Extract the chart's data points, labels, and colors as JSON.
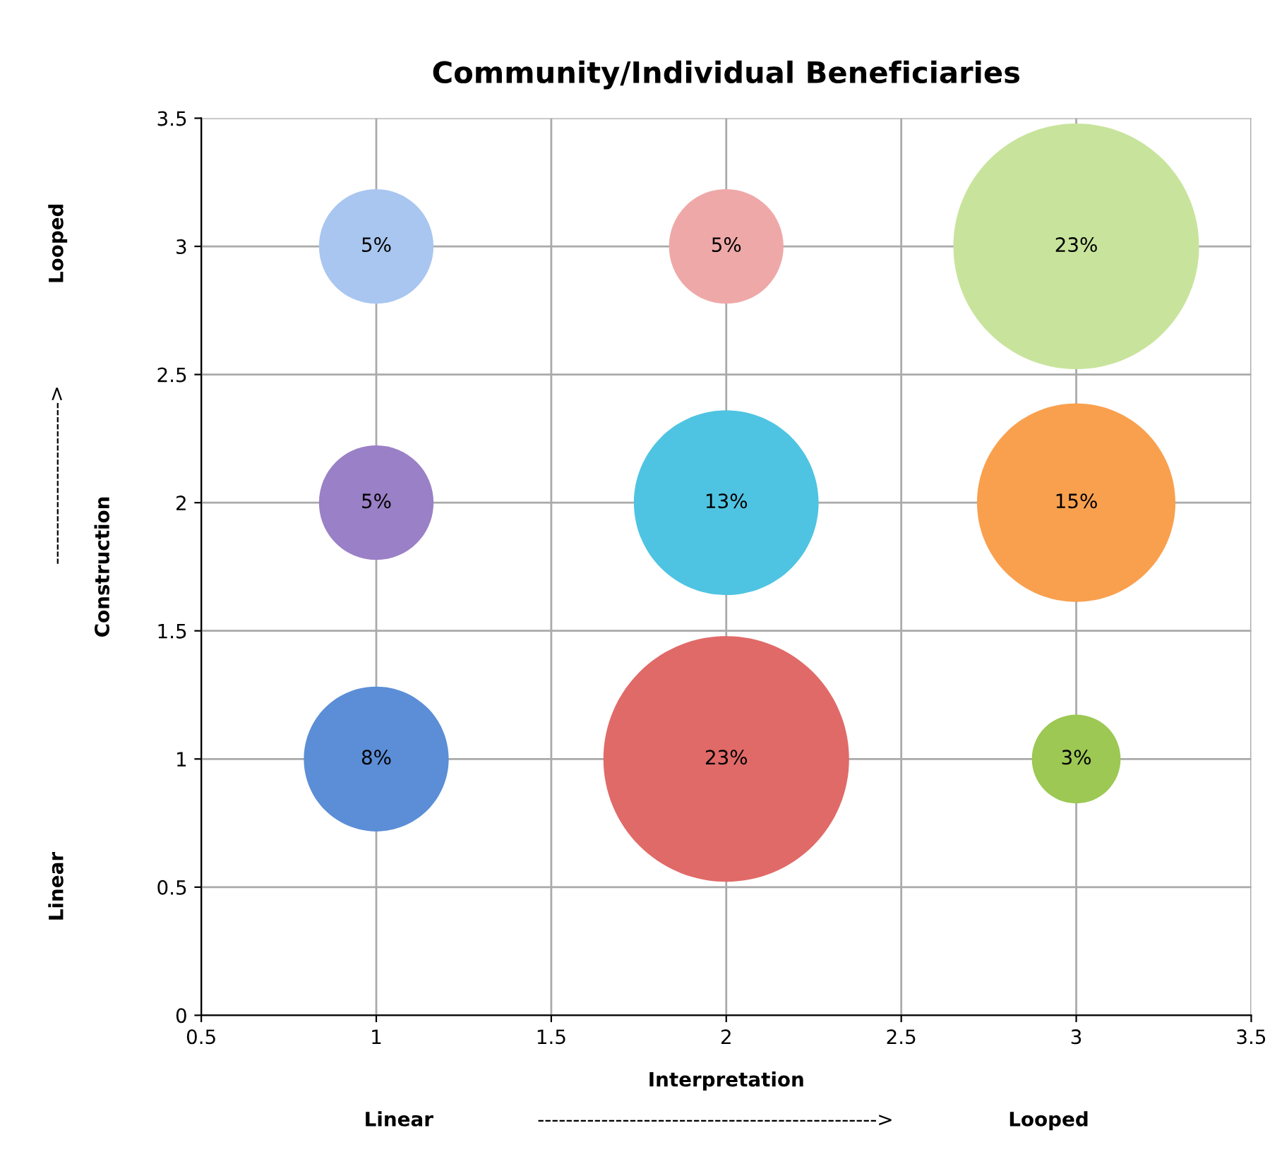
{
  "chart_data": {
    "type": "bubble",
    "title": "Community/Individual Beneficiaries",
    "xlabel": "Interpretation",
    "ylabel": "Construction",
    "x": [
      1,
      2,
      3,
      1,
      2,
      3,
      1,
      2,
      3
    ],
    "values": [
      1,
      1,
      1,
      2,
      2,
      2,
      3,
      3,
      3
    ],
    "sizes": [
      8,
      23,
      3,
      5,
      13,
      15,
      5,
      5,
      23
    ],
    "value_labels": [
      "8%",
      "23%",
      "3%",
      "5%",
      "13%",
      "15%",
      "5%",
      "5%",
      "23%"
    ],
    "colors": [
      "#5b8ed6",
      "#e06a68",
      "#9cc853",
      "#9a80c6",
      "#4ec4e2",
      "#f9a04e",
      "#a9c6f0",
      "#efa8a8",
      "#c8e49c"
    ],
    "xlim": [
      0.5,
      3.5
    ],
    "xticks": [
      0.5,
      1,
      1.5,
      2,
      2.5,
      3,
      3.5
    ],
    "ylim": [
      0,
      3.5
    ],
    "yticks": [
      0,
      0.5,
      1,
      1.5,
      2,
      2.5,
      3,
      3.5
    ],
    "grid": true,
    "annotations": [
      "Linear",
      "------------------------------------------------>",
      "Looped",
      "Linear",
      "----------------------->",
      "Looped"
    ]
  }
}
